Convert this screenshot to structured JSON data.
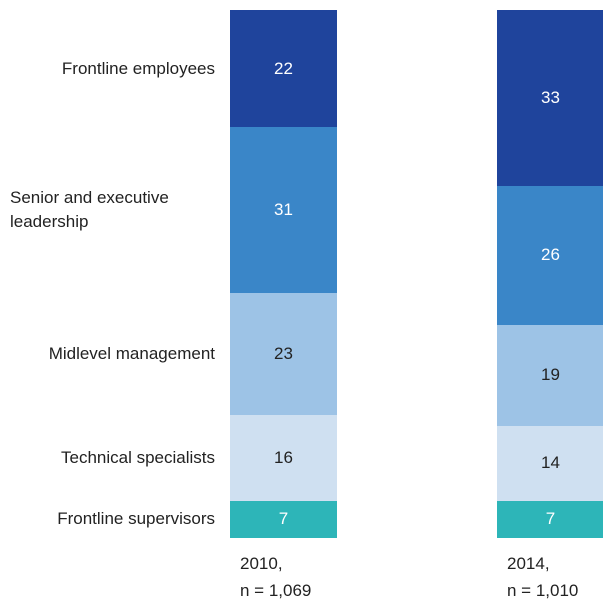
{
  "chart_data": {
    "type": "stacked_bar",
    "categories": [
      "2010,\nn = 1,069",
      "2014,\nn = 1,010"
    ],
    "series": [
      {
        "name": "Frontline employees",
        "color": "#1f449c",
        "values": [
          22,
          33
        ]
      },
      {
        "name": "Senior and executive leadership",
        "color": "#3a86c8",
        "values": [
          31,
          26
        ]
      },
      {
        "name": "Midlevel management",
        "color": "#9dc3e6",
        "values": [
          23,
          19
        ]
      },
      {
        "name": "Technical specialists",
        "color": "#cfe0f1",
        "values": [
          16,
          14
        ]
      },
      {
        "name": "Frontline supervisors",
        "color": "#2db5b8",
        "values": [
          7,
          7
        ]
      }
    ]
  }
}
